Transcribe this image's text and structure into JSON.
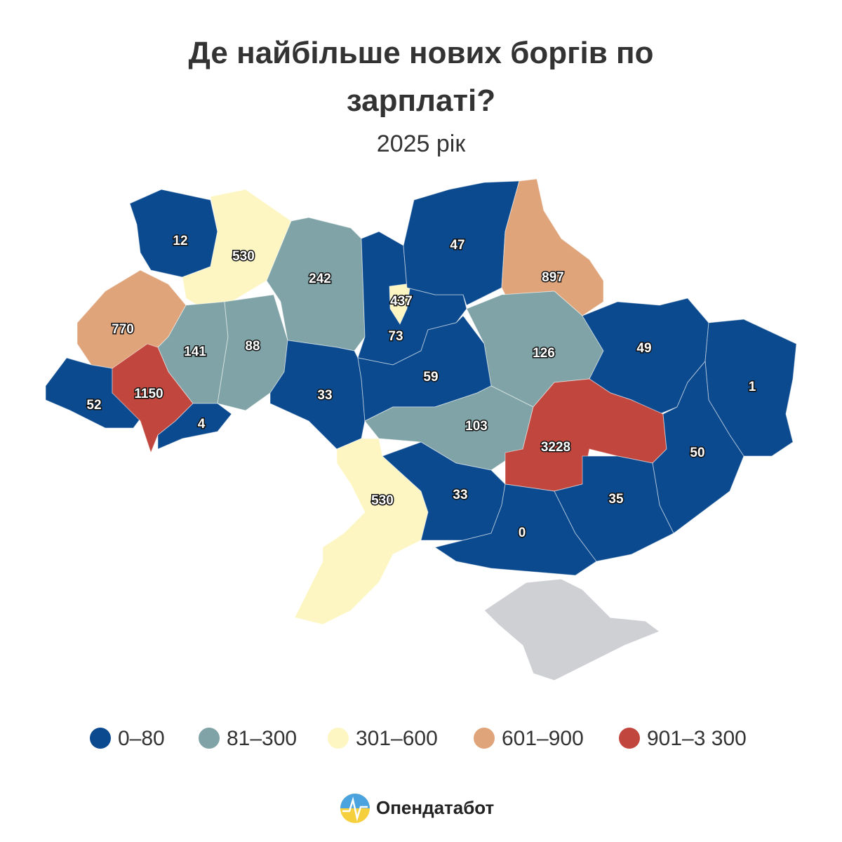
{
  "title": "Де найбільше нових боргів по зарплаті?",
  "subtitle": "2025 рік",
  "regions": [
    {
      "value": 12,
      "color": "#0b4a8f"
    },
    {
      "value": 530,
      "color": "#fdf6c3"
    },
    {
      "value": 242,
      "color": "#7fa3a6"
    },
    {
      "value": 73,
      "color": "#0b4a8f"
    },
    {
      "value": 437,
      "color": "#fdf6c3"
    },
    {
      "value": 47,
      "color": "#0b4a8f"
    },
    {
      "value": 897,
      "color": "#e0a47b"
    },
    {
      "value": 770,
      "color": "#e0a47b"
    },
    {
      "value": 141,
      "color": "#7fa3a6"
    },
    {
      "value": 88,
      "color": "#7fa3a6"
    },
    {
      "value": 126,
      "color": "#7fa3a6"
    },
    {
      "value": 49,
      "color": "#0b4a8f"
    },
    {
      "value": 1,
      "color": "#0b4a8f"
    },
    {
      "value": 52,
      "color": "#0b4a8f"
    },
    {
      "value": 1150,
      "color": "#c1463d"
    },
    {
      "value": 4,
      "color": "#0b4a8f"
    },
    {
      "value": 33,
      "color": "#0b4a8f"
    },
    {
      "value": 59,
      "color": "#0b4a8f"
    },
    {
      "value": 103,
      "color": "#7fa3a6"
    },
    {
      "value": 3228,
      "color": "#c1463d"
    },
    {
      "value": 50,
      "color": "#0b4a8f"
    },
    {
      "value": 530,
      "color": "#fdf6c3"
    },
    {
      "value": 33,
      "color": "#0b4a8f"
    },
    {
      "value": 0,
      "color": "#0b4a8f"
    },
    {
      "value": 35,
      "color": "#0b4a8f"
    }
  ],
  "legend": [
    {
      "label": "0–80",
      "color": "#0b4a8f"
    },
    {
      "label": "81–300",
      "color": "#7fa3a6"
    },
    {
      "label": "301–600",
      "color": "#fdf6c3"
    },
    {
      "label": "601–900",
      "color": "#e0a47b"
    },
    {
      "label": "901–3 300",
      "color": "#c1463d"
    }
  ],
  "brand": "Опендатабот"
}
